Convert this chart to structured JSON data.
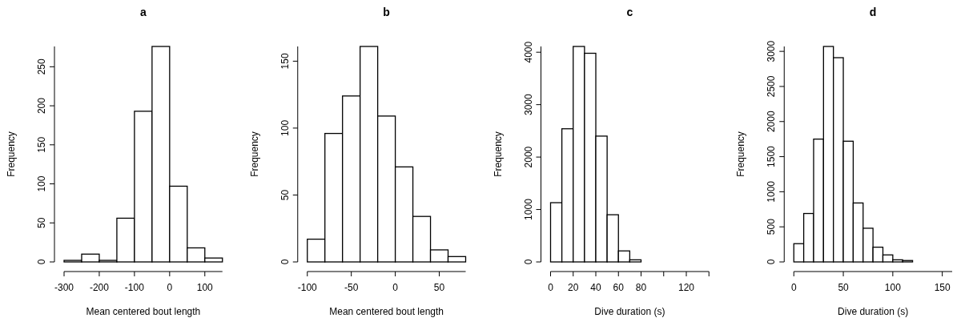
{
  "chart_data": [
    {
      "type": "histogram",
      "title": "a",
      "xlabel": "Mean centered bout length",
      "ylabel": "Frequency",
      "bins": [
        -300,
        -250,
        -200,
        -150,
        -100,
        -50,
        0,
        50,
        100,
        150
      ],
      "values": [
        2,
        10,
        2,
        56,
        193,
        276,
        97,
        18,
        5
      ],
      "color": "#ffffff",
      "xlim": [
        -300,
        150
      ],
      "xticks": [
        -300,
        -200,
        -100,
        0,
        100
      ],
      "ylim": [
        0,
        276
      ],
      "yticks": [
        0,
        50,
        100,
        150,
        200,
        250
      ],
      "grid": false
    },
    {
      "type": "histogram",
      "title": "b",
      "xlabel": "Mean centered bout length",
      "ylabel": "Frequency",
      "bins": [
        -100,
        -80,
        -60,
        -40,
        -20,
        0,
        20,
        40,
        60,
        80
      ],
      "values": [
        17,
        96,
        124,
        161,
        109,
        71,
        34,
        9,
        4
      ],
      "color": "#ffffff",
      "xlim": [
        -100,
        80
      ],
      "xticks": [
        -100,
        -50,
        0,
        50
      ],
      "ylim": [
        0,
        161
      ],
      "yticks": [
        0,
        50,
        100,
        150
      ],
      "grid": false
    },
    {
      "type": "histogram",
      "title": "c",
      "xlabel": "Dive duration (s)",
      "ylabel": "Frequency",
      "bins": [
        0,
        10,
        20,
        30,
        40,
        50,
        60,
        70,
        80,
        90,
        100,
        110,
        120,
        130,
        140
      ],
      "values": [
        1130,
        2540,
        4110,
        3980,
        2400,
        900,
        210,
        40,
        0,
        0,
        0,
        0,
        0,
        0
      ],
      "color": "#ffffff",
      "xlim": [
        0,
        140
      ],
      "xticks": [
        0,
        20,
        40,
        60,
        80,
        {
          "value": 100,
          "label": null
        },
        120,
        {
          "value": 140,
          "label": null
        }
      ],
      "ylim": [
        0,
        4110
      ],
      "yticks": [
        0,
        1000,
        2000,
        3000,
        4000
      ],
      "grid": false
    },
    {
      "type": "histogram",
      "title": "d",
      "xlabel": "Dive duration (s)",
      "ylabel": "Frequency",
      "bins": [
        0,
        10,
        20,
        30,
        40,
        50,
        60,
        70,
        80,
        90,
        100,
        110,
        120,
        130,
        140,
        150,
        160
      ],
      "values": [
        260,
        690,
        1750,
        3070,
        2910,
        1720,
        840,
        480,
        210,
        100,
        30,
        20,
        0,
        0,
        0,
        0
      ],
      "color": "#ffffff",
      "xlim": [
        0,
        160
      ],
      "xticks": [
        0,
        50,
        100,
        150
      ],
      "ylim": [
        0,
        3070
      ],
      "yticks": [
        0,
        500,
        1000,
        1500,
        2000,
        2500,
        3000
      ],
      "grid": false
    }
  ]
}
